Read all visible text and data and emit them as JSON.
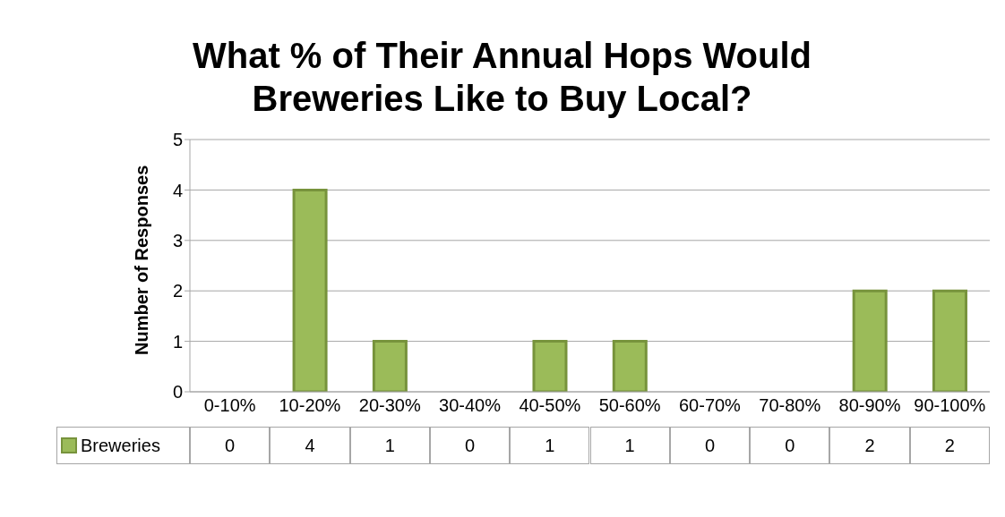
{
  "chart_data": {
    "type": "bar",
    "title": "What % of Their Annual Hops Would Breweries Like to Buy Local?",
    "ylabel": "Number of Responses",
    "categories": [
      "0-10%",
      "10-20%",
      "20-30%",
      "30-40%",
      "40-50%",
      "50-60%",
      "60-70%",
      "70-80%",
      "80-90%",
      "90-100%"
    ],
    "series": [
      {
        "name": "Breweries",
        "color": "#9bbb59",
        "values": [
          0,
          4,
          1,
          0,
          1,
          1,
          0,
          0,
          2,
          2
        ]
      }
    ],
    "ylim": [
      0,
      5
    ],
    "yticks": [
      0,
      1,
      2,
      3,
      4,
      5
    ],
    "grid": "y",
    "legend": "bottom",
    "data_labels": true
  }
}
